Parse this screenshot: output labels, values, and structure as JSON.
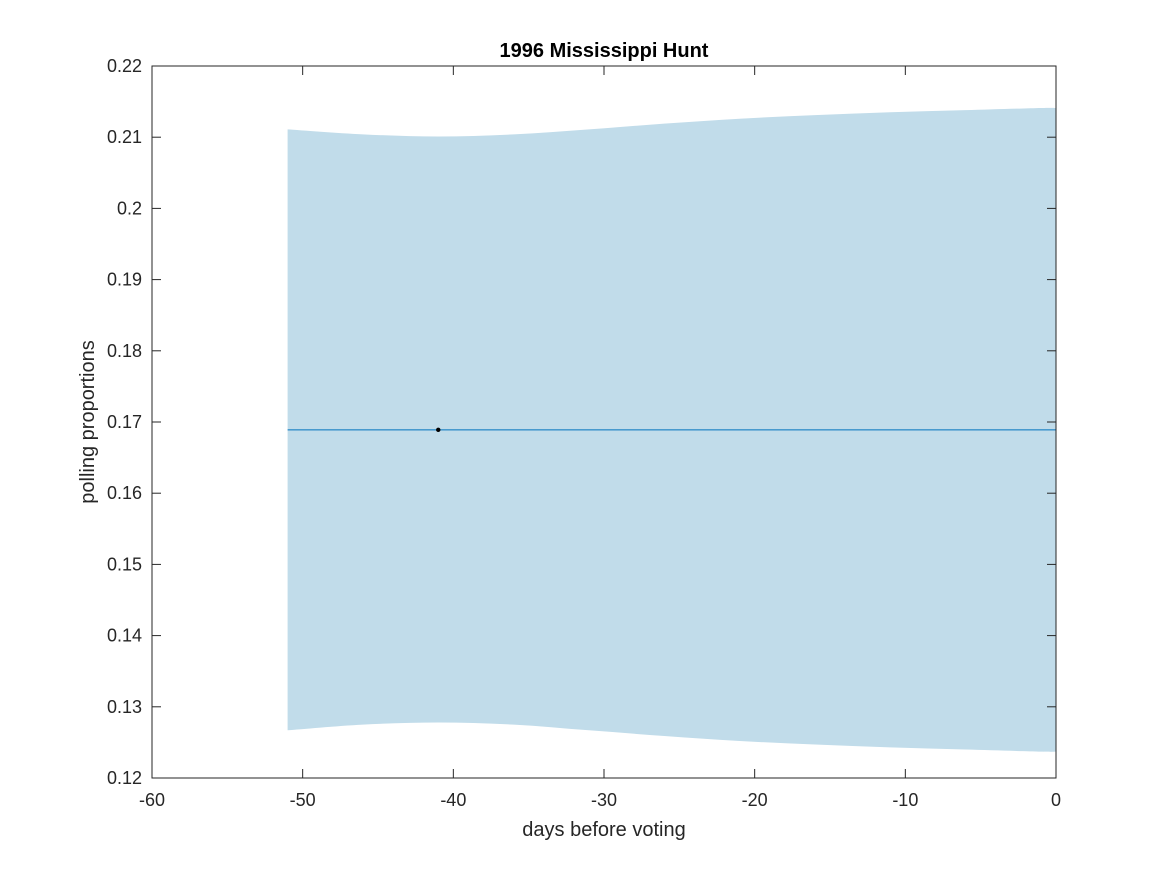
{
  "chart_data": {
    "type": "line",
    "title": "1996 Mississippi Hunt",
    "xlabel": "days before voting",
    "ylabel": "polling proportions",
    "xlim": [
      -60,
      0
    ],
    "ylim": [
      0.12,
      0.22
    ],
    "xticks": [
      -60,
      -50,
      -40,
      -30,
      -20,
      -10,
      0
    ],
    "yticks": [
      0.12,
      0.13,
      0.14,
      0.15,
      0.16,
      0.17,
      0.18,
      0.19,
      0.2,
      0.21,
      0.22
    ],
    "xtick_labels": [
      "-60",
      "-50",
      "-40",
      "-30",
      "-20",
      "-10",
      "0"
    ],
    "ytick_labels": [
      "0.12",
      "0.13",
      "0.14",
      "0.15",
      "0.16",
      "0.17",
      "0.18",
      "0.19",
      "0.2",
      "0.21",
      "0.22"
    ],
    "grid": false,
    "series": [
      {
        "kind": "band",
        "color": "#c1dcea",
        "x": [
          -51,
          -46,
          -41,
          -36,
          -31,
          -26,
          -21,
          -16,
          -11,
          -6,
          -1,
          0
        ],
        "upper": [
          0.2111,
          0.2104,
          0.2101,
          0.2104,
          0.2111,
          0.2119,
          0.2126,
          0.2131,
          0.2135,
          0.2138,
          0.2141,
          0.2141
        ],
        "lower": [
          0.1267,
          0.1275,
          0.1278,
          0.1275,
          0.1267,
          0.1259,
          0.1252,
          0.1247,
          0.1243,
          0.124,
          0.1237,
          0.1237
        ]
      },
      {
        "kind": "line",
        "color": "#0072bd",
        "x": [
          -51,
          0
        ],
        "y": [
          0.1689,
          0.1689
        ]
      },
      {
        "kind": "scatter",
        "color": "#000000",
        "x": [
          -41
        ],
        "y": [
          0.1689
        ]
      }
    ]
  }
}
